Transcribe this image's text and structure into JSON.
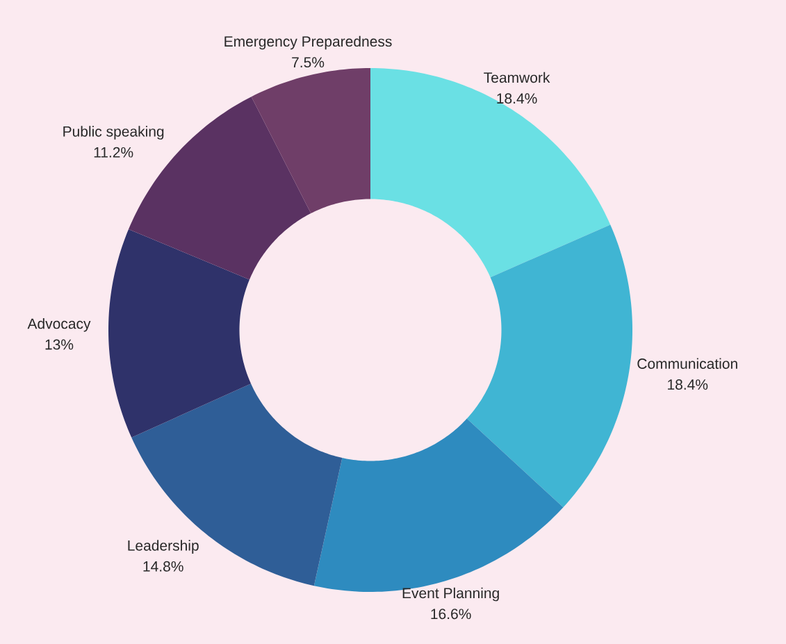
{
  "chart_data": {
    "type": "donut",
    "categories": [
      "Teamwork",
      "Communication",
      "Event Planning",
      "Leadership",
      "Advocacy",
      "Public speaking",
      "Emergency Preparedness"
    ],
    "values": [
      18.4,
      18.4,
      16.6,
      14.8,
      13,
      11.2,
      7.5
    ],
    "value_labels": [
      "18.4%",
      "18.4%",
      "16.6%",
      "14.8%",
      "13%",
      "11.2%",
      "7.5%"
    ],
    "colors": [
      "#6ae0e4",
      "#40b5d3",
      "#2e8bbf",
      "#2f5e97",
      "#2f326a",
      "#5a3262",
      "#6f3e68"
    ]
  }
}
